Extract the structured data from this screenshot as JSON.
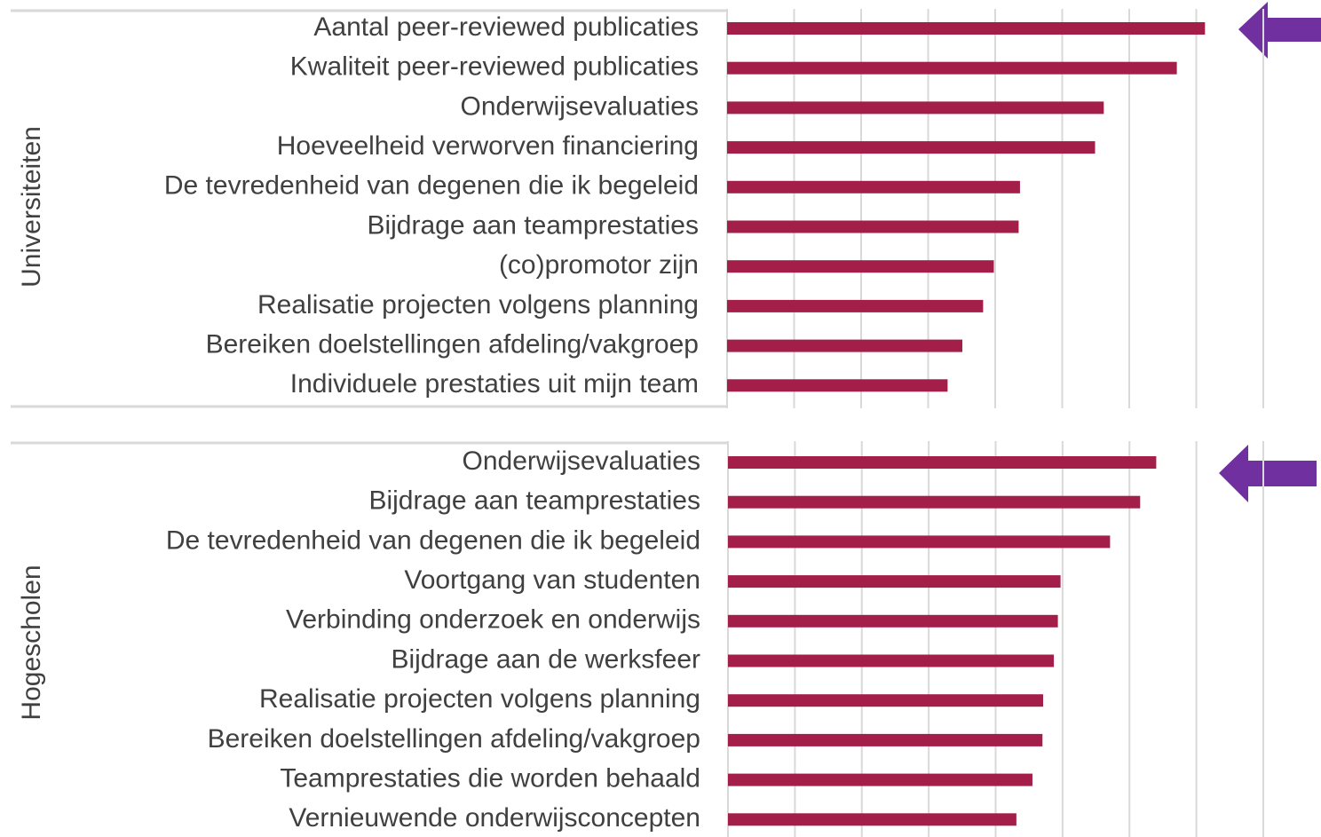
{
  "chart_data": [
    {
      "type": "bar",
      "orientation": "horizontal",
      "ylabel": "Universiteiten",
      "color": "#a31f4a",
      "grid": true,
      "categories": [
        "Aantal peer-reviewed publicaties",
        "Kwaliteit peer-reviewed publicaties",
        "Onderwijsevaluaties",
        "Hoeveelheid verworven financiering",
        "De tevredenheid van degenen die ik begeleid",
        "Bijdrage aan teamprestaties",
        "(co)promotor zijn",
        "Realisatie projecten volgens planning",
        "Bereiken doelstellingen afdeling/vakgroep",
        "Individuele prestaties uit mijn team"
      ],
      "values": [
        7.13,
        6.71,
        5.62,
        5.49,
        4.37,
        4.35,
        3.98,
        3.82,
        3.51,
        3.29
      ],
      "xlim": [
        0,
        8
      ],
      "xticks": [
        0,
        1,
        2,
        3,
        4,
        5,
        6,
        7,
        8
      ]
    },
    {
      "type": "bar",
      "orientation": "horizontal",
      "ylabel": "Hogescholen",
      "color": "#a31f4a",
      "grid": true,
      "categories": [
        "Onderwijsevaluaties",
        "Bijdrage aan teamprestaties",
        "De tevredenheid van degenen die ik begeleid",
        "Voortgang van studenten",
        "Verbinding onderzoek en onderwijs",
        "Bijdrage aan de werksfeer",
        "Realisatie projecten volgens planning",
        "Bereiken doelstellingen afdeling/vakgroep",
        "Teamprestaties die worden behaald",
        "Vernieuwende onderwijsconcepten"
      ],
      "values": [
        6.4,
        6.16,
        5.71,
        4.97,
        4.93,
        4.87,
        4.71,
        4.7,
        4.55,
        4.31
      ],
      "xlim": [
        0,
        8
      ],
      "xticks": [
        0,
        1,
        2,
        3,
        4,
        5,
        6,
        7,
        8
      ]
    }
  ]
}
